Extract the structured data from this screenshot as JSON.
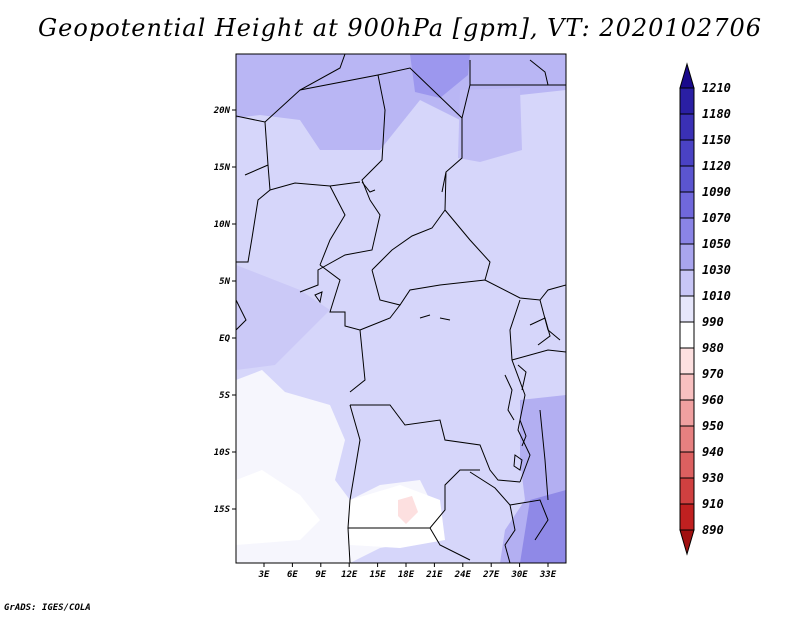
{
  "title": "Geopotential Height at 900hPa [gpm], VT: 2020102706",
  "credit": "GrADS: IGES/COLA",
  "map": {
    "lat_ticks": [
      "20N",
      "15N",
      "10N",
      "5N",
      "EQ",
      "5S",
      "10S",
      "15S"
    ],
    "lon_ticks": [
      "3E",
      "6E",
      "9E",
      "12E",
      "15E",
      "18E",
      "21E",
      "24E",
      "27E",
      "30E",
      "33E"
    ]
  },
  "colorbar": {
    "levels": [
      "1210",
      "1180",
      "1150",
      "1120",
      "1090",
      "1070",
      "1050",
      "1030",
      "1010",
      "990",
      "980",
      "970",
      "960",
      "950",
      "940",
      "930",
      "910",
      "890"
    ],
    "colors": [
      "#1a0a8c",
      "#2a1fa3",
      "#3a30b5",
      "#4a42c4",
      "#5b55d0",
      "#7068dc",
      "#8a84e6",
      "#a9a5ee",
      "#c8c6f6",
      "#e6e6fb",
      "#ffffff",
      "#fde0e0",
      "#f8c0c0",
      "#f0a0a0",
      "#e68080",
      "#dc6060",
      "#d04040",
      "#c02020",
      "#a01010"
    ]
  }
}
